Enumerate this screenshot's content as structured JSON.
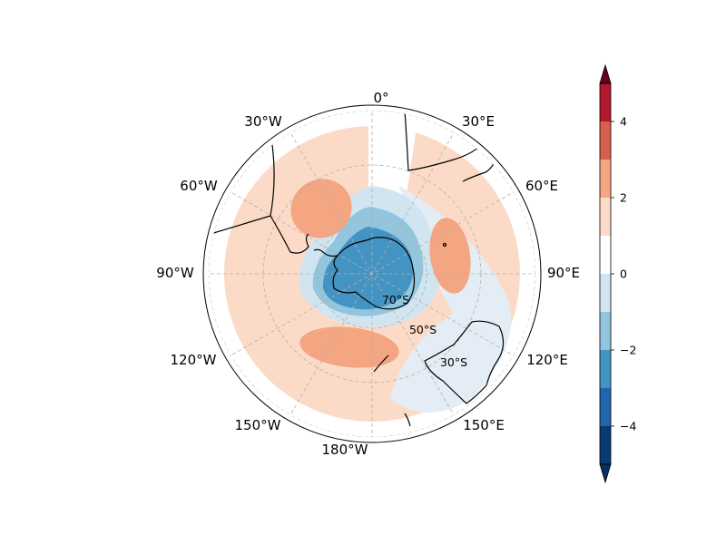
{
  "map": {
    "projection": "south-polar-stereographic",
    "longitude_labels": [
      {
        "id": "0",
        "text": "0°"
      },
      {
        "id": "30E",
        "text": "30°E"
      },
      {
        "id": "60E",
        "text": "60°E"
      },
      {
        "id": "90E",
        "text": "90°E"
      },
      {
        "id": "120E",
        "text": "120°E"
      },
      {
        "id": "150E",
        "text": "150°E"
      },
      {
        "id": "180W",
        "text": "180°W"
      },
      {
        "id": "150W",
        "text": "150°W"
      },
      {
        "id": "120W",
        "text": "120°W"
      },
      {
        "id": "90W",
        "text": "90°W"
      },
      {
        "id": "60W",
        "text": "60°W"
      },
      {
        "id": "30W",
        "text": "30°W"
      }
    ],
    "latitude_labels": [
      {
        "id": "70S",
        "text": "70°S"
      },
      {
        "id": "50S",
        "text": "50°S"
      },
      {
        "id": "30S",
        "text": "30°S"
      }
    ],
    "gridlines": true,
    "coastlines": true
  },
  "colorbar": {
    "levels": [
      -5,
      -4,
      -3,
      -2,
      -1,
      0,
      1,
      2,
      3,
      4,
      5
    ],
    "colors": [
      "#0a3b70",
      "#2166ac",
      "#4393c3",
      "#92c5de",
      "#d1e5f0",
      "#ffffff",
      "#fbdbc7",
      "#f4a582",
      "#d6604d",
      "#b2182b",
      "#67001f"
    ],
    "extend": "both",
    "under_color": "#053061",
    "over_color": "#67001f",
    "ticks": [
      {
        "value": 4,
        "label": "4"
      },
      {
        "value": 2,
        "label": "2"
      },
      {
        "value": 0,
        "label": "0"
      },
      {
        "value": -2,
        "label": "−2"
      },
      {
        "value": -4,
        "label": "−4"
      }
    ]
  }
}
